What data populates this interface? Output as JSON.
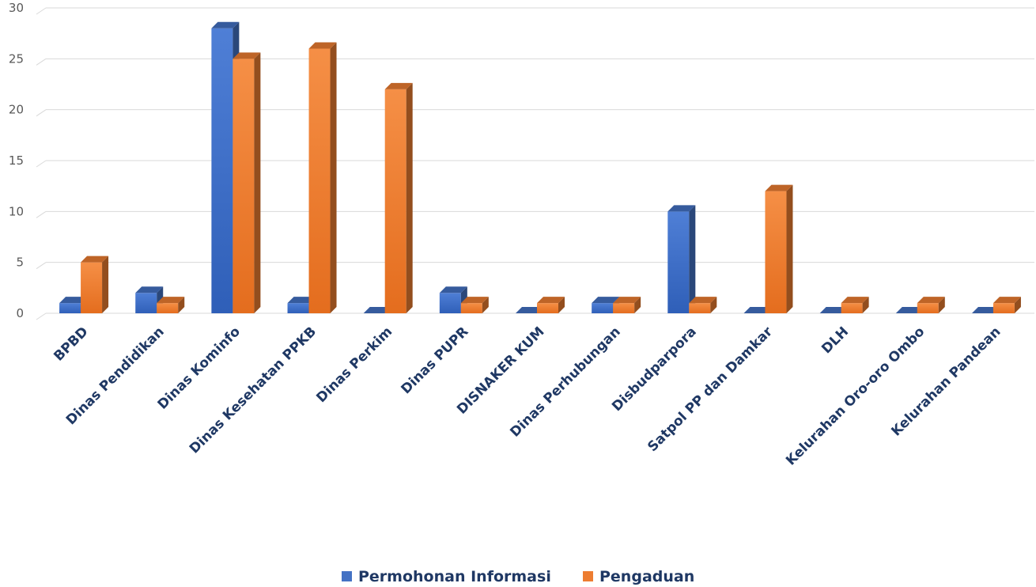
{
  "chart_data": {
    "type": "bar",
    "categories": [
      "BPBD",
      "Dinas Pendidikan",
      "Dinas Kominfo",
      "Dinas Kesehatan PPKB",
      "Dinas Perkim",
      "Dinas PUPR",
      "DISNAKER KUM",
      "Dinas Perhubungan",
      "Disbudparpora",
      "Satpol PP dan Damkar",
      "DLH",
      "Kelurahan Oro-oro Ombo",
      "Kelurahan Pandean"
    ],
    "series": [
      {
        "name": "Permohonan Informasi",
        "color": "#4472c4",
        "values": [
          1,
          2,
          28,
          1,
          0,
          2,
          0,
          1,
          10,
          0,
          0,
          0,
          0
        ]
      },
      {
        "name": "Pengaduan",
        "color": "#ed7d31",
        "values": [
          5,
          1,
          25,
          26,
          22,
          1,
          1,
          1,
          1,
          12,
          1,
          1,
          1
        ]
      }
    ],
    "yticks": [
      0,
      5,
      10,
      15,
      20,
      25,
      30
    ],
    "ylim": [
      0,
      30
    ],
    "grid": true,
    "legend": "bottom",
    "title": "",
    "xlabel": "",
    "ylabel": ""
  }
}
